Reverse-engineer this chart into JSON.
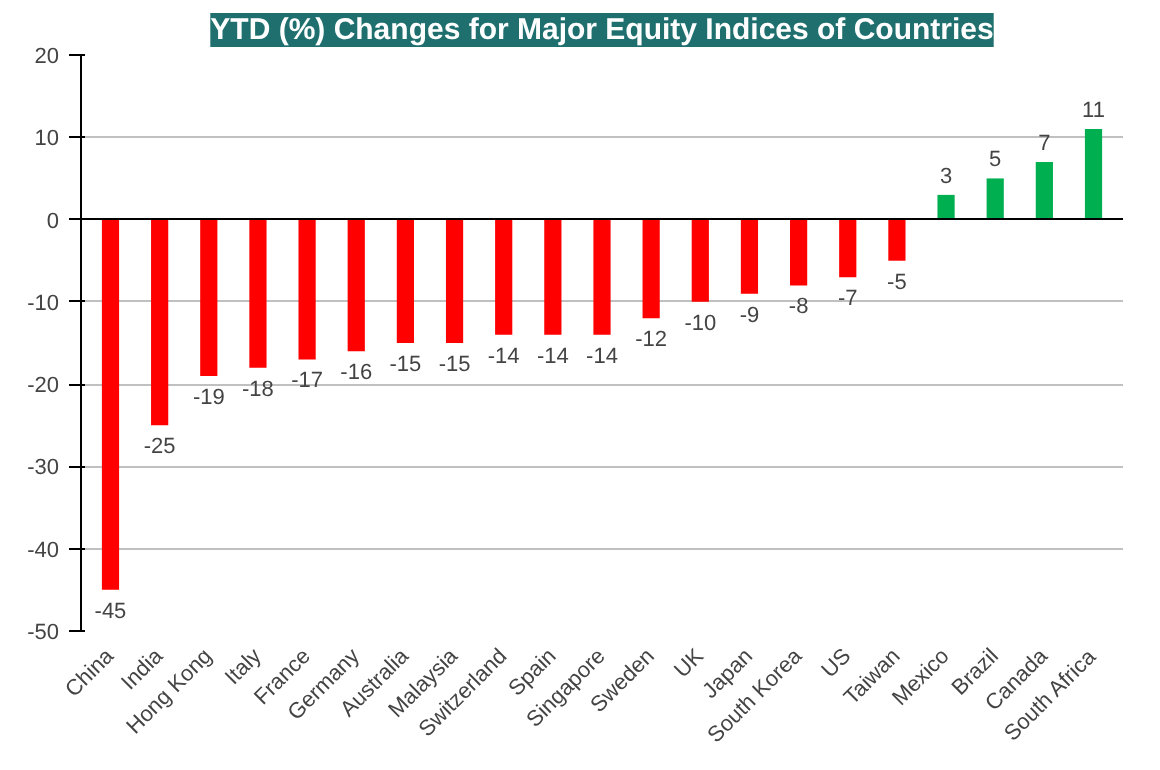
{
  "chart_data": {
    "type": "bar",
    "title": "YTD (%) Changes for Major Equity Indices of Countries",
    "categories": [
      "China",
      "India",
      "Hong Kong",
      "Italy",
      "France",
      "Germany",
      "Australia",
      "Malaysia",
      "Switzerland",
      "Spain",
      "Singapore",
      "Sweden",
      "UK",
      "Japan",
      "South Korea",
      "US",
      "Taiwan",
      "Mexico",
      "Brazil",
      "Canada",
      "South Africa"
    ],
    "values": [
      -45,
      -25,
      -19,
      -18,
      -17,
      -16,
      -15,
      -15,
      -14,
      -14,
      -14,
      -12,
      -10,
      -9,
      -8,
      -7,
      -5,
      3,
      5,
      7,
      11
    ],
    "colors": [
      "#ff0000",
      "#ff0000",
      "#ff0000",
      "#ff0000",
      "#ff0000",
      "#ff0000",
      "#ff0000",
      "#ff0000",
      "#ff0000",
      "#ff0000",
      "#ff0000",
      "#ff0000",
      "#ff0000",
      "#ff0000",
      "#ff0000",
      "#ff0000",
      "#ff0000",
      "#00b050",
      "#00b050",
      "#00b050",
      "#00b050"
    ],
    "ylim": [
      -50,
      20
    ],
    "yticks": [
      -50,
      -40,
      -30,
      -20,
      -10,
      0,
      10,
      20
    ],
    "grid": "y",
    "data_labels": true
  }
}
